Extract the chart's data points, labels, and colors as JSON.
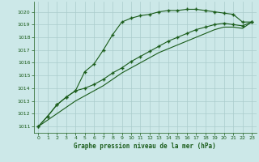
{
  "xlabel": "Graphe pression niveau de la mer (hPa)",
  "bg_color": "#cce8e8",
  "grid_color": "#aacccc",
  "line_color": "#1a5c1a",
  "xlim": [
    -0.5,
    23.5
  ],
  "ylim": [
    1010.5,
    1020.8
  ],
  "yticks": [
    1011,
    1012,
    1013,
    1014,
    1015,
    1016,
    1017,
    1018,
    1019,
    1020
  ],
  "xticks": [
    0,
    1,
    2,
    3,
    4,
    5,
    6,
    7,
    8,
    9,
    10,
    11,
    12,
    13,
    14,
    15,
    16,
    17,
    18,
    19,
    20,
    21,
    22,
    23
  ],
  "series1": [
    1011.0,
    1011.8,
    1012.7,
    1013.3,
    1013.8,
    1015.3,
    1015.9,
    1017.0,
    1018.2,
    1019.2,
    1019.5,
    1019.7,
    1019.8,
    1020.0,
    1020.1,
    1020.1,
    1020.2,
    1020.2,
    1020.1,
    1020.0,
    1019.9,
    1019.8,
    1019.2,
    1019.2
  ],
  "series2": [
    1011.0,
    1011.8,
    1012.7,
    1013.3,
    1013.8,
    1014.0,
    1014.3,
    1014.7,
    1015.2,
    1015.6,
    1016.1,
    1016.5,
    1016.9,
    1017.3,
    1017.7,
    1018.0,
    1018.3,
    1018.6,
    1018.8,
    1019.0,
    1019.1,
    1019.0,
    1018.9,
    1019.2
  ],
  "series3": [
    1011.0,
    1011.5,
    1012.0,
    1012.5,
    1013.0,
    1013.4,
    1013.8,
    1014.2,
    1014.7,
    1015.2,
    1015.6,
    1016.0,
    1016.4,
    1016.8,
    1017.1,
    1017.4,
    1017.7,
    1018.0,
    1018.3,
    1018.6,
    1018.8,
    1018.8,
    1018.7,
    1019.2
  ]
}
